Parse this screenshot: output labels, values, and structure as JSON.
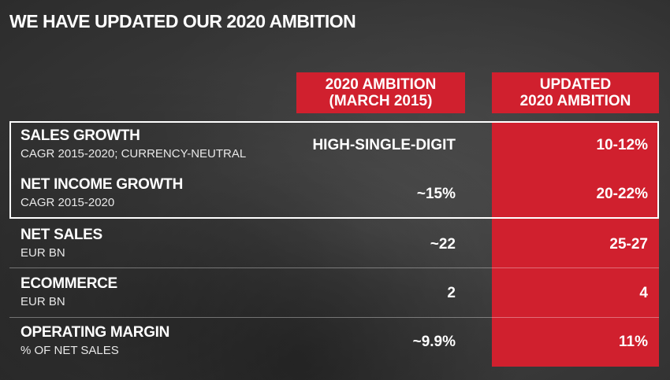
{
  "title": "WE HAVE UPDATED OUR 2020 AMBITION",
  "headers": {
    "col1_line1": "2020 AMBITION",
    "col1_line2": "(MARCH 2015)",
    "col2_line1": "UPDATED",
    "col2_line2": "2020 AMBITION"
  },
  "rows": [
    {
      "label": "SALES GROWTH",
      "sub": "CAGR 2015-2020; CURRENCY-NEUTRAL",
      "ambition": "HIGH-SINGLE-DIGIT",
      "updated": "10-12%"
    },
    {
      "label": "NET INCOME GROWTH",
      "sub": "CAGR 2015-2020",
      "ambition": "~15%",
      "updated": "20-22%"
    },
    {
      "label": "NET SALES",
      "sub": "EUR BN",
      "ambition": "~22",
      "updated": "25-27"
    },
    {
      "label": "ECOMMERCE",
      "sub": "EUR BN",
      "ambition": "2",
      "updated": "4"
    },
    {
      "label": "OPERATING MARGIN",
      "sub": "% OF NET SALES",
      "ambition": "~9.9%",
      "updated": "11%"
    }
  ],
  "colors": {
    "accent": "#d0202e",
    "background": "#333333"
  }
}
